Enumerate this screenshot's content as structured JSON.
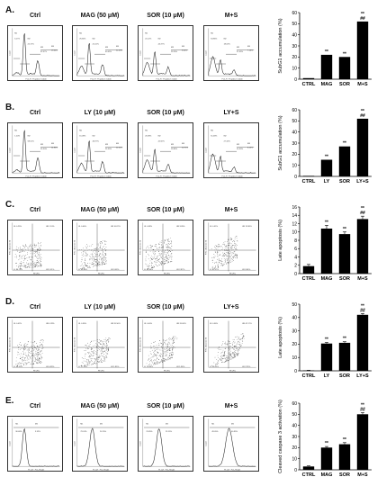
{
  "panels": [
    {
      "label": "A.",
      "kind": "hist",
      "headers": [
        "Ctrl",
        "MAG (50 μM)",
        "SOR (10 μM)",
        "M+S"
      ],
      "mini": {
        "xlabel": "FL2-H : Propidium Iodide",
        "ylabel": "Count",
        "inner": [
          [
            "M1",
            "6.17%",
            "M2",
            "22.72%",
            "M3",
            "52.57%",
            "M4",
            "19.44%"
          ],
          [
            "M1",
            "25.66%",
            "M2",
            "22.41%",
            "M3",
            "40.05%",
            "M4",
            "12.29%"
          ],
          [
            "M1",
            "21.12%",
            "M2",
            "44.37%",
            "M3",
            "29.26%",
            "M4",
            "5.04%"
          ],
          [
            "M1",
            "53.86%",
            "M2",
            "18.03%",
            "M3",
            "21.05%",
            "M4",
            "7.16%"
          ]
        ]
      },
      "chart_data": {
        "type": "bar",
        "categories": [
          "CTRL",
          "MAG",
          "SOR",
          "M+S"
        ],
        "values": [
          1,
          22,
          20,
          52
        ],
        "ylabel": "SubG1 accumulation (%)",
        "ylim": [
          0,
          60
        ],
        "yticks": [
          "0",
          "10",
          "20",
          "30",
          "40",
          "50",
          "60"
        ],
        "significance": [
          "",
          "**",
          "**",
          "**\n##"
        ]
      }
    },
    {
      "label": "B.",
      "kind": "hist",
      "headers": [
        "Ctrl",
        "LY (10 μM)",
        "SOR (10 μM)",
        "LY+S"
      ],
      "mini": {
        "xlabel": "FL2-H : Propidium Iodide",
        "ylabel": "Count",
        "inner": [
          [
            "M1",
            "1.20%",
            "M2",
            "58.51%",
            "M3",
            "25.30%",
            "M4",
            "14.84%"
          ],
          [
            "M1",
            "16.08%",
            "M2",
            "46.97%",
            "M3",
            "25.33%",
            "M4",
            "11.52%"
          ],
          [
            "M1",
            "26.38%",
            "M2",
            "42.92%",
            "M3",
            "19.85%",
            "M4",
            "10.71%"
          ],
          [
            "M1",
            "51.48%",
            "M2",
            "27.34%",
            "M3",
            "14.33%",
            "M4",
            "6.23%"
          ]
        ]
      },
      "chart_data": {
        "type": "bar",
        "categories": [
          "CTRL",
          "LY",
          "SOR",
          "LY+S"
        ],
        "values": [
          0.5,
          15,
          27,
          52
        ],
        "ylabel": "SubG1 accumulation (%)",
        "ylim": [
          0,
          60
        ],
        "yticks": [
          "0",
          "10",
          "20",
          "30",
          "40",
          "50",
          "60"
        ],
        "significance": [
          "",
          "**",
          "**",
          "**\n##"
        ]
      }
    },
    {
      "label": "C.",
      "kind": "dot",
      "headers": [
        "Ctrl",
        "MAG (50 μM)",
        "SOR (10 μM)",
        "M+S"
      ],
      "mini": {
        "xlabel": "PE (PI)",
        "ylabel": "FITC (Annexin V)",
        "inner": [
          [
            "UL 0.25%",
            "UR 1.51%",
            "LL 96.73%",
            "LR 1.51%"
          ],
          [
            "UL 0.44%",
            "UR 10.87%",
            "LL 85.66%",
            "LR 3.03%"
          ],
          [
            "UL 0.38%",
            "UR 9.85%",
            "LL 86.90%",
            "LR 2.87%"
          ],
          [
            "UL 0.51%",
            "UR 13.38%",
            "LL 82.57%",
            "LR 3.54%"
          ]
        ]
      },
      "chart_data": {
        "type": "bar",
        "categories": [
          "CTRL",
          "MAG",
          "SOR",
          "M+S"
        ],
        "values": [
          1.8,
          10.8,
          9.5,
          13.1
        ],
        "errors": [
          0.4,
          0.8,
          0.5,
          0.7
        ],
        "ylabel": "Late apoptosis (%)",
        "ylim": [
          0,
          16
        ],
        "yticks": [
          "0",
          "2",
          "4",
          "6",
          "8",
          "10",
          "12",
          "14",
          "16"
        ],
        "significance": [
          "",
          "**",
          "**",
          "**\n##"
        ]
      }
    },
    {
      "label": "D.",
      "kind": "dot",
      "headers": [
        "Ctrl",
        "LY (10 μM)",
        "SOR (10 μM)",
        "LY+S"
      ],
      "mini": {
        "xlabel": "PE (PI)",
        "ylabel": "FITC (Annexin V)",
        "inner": [
          [
            "UL 0.02%",
            "UR 0.28%",
            "LL 99.31%",
            "LR 0.39%"
          ],
          [
            "UL 0.36%",
            "UR 20.56%",
            "LL 77.23%",
            "LR 1.85%"
          ],
          [
            "UL 0.40%",
            "UR 20.84%",
            "LL 76.80%",
            "LR 1.96%"
          ],
          [
            "UL 0.56%",
            "UR 42.17%",
            "LL 55.02%",
            "LR 2.25%"
          ]
        ]
      },
      "chart_data": {
        "type": "bar",
        "categories": [
          "CTRL",
          "LY",
          "SOR",
          "LY+S"
        ],
        "values": [
          0.3,
          20.5,
          21,
          42
        ],
        "errors": [
          0.1,
          0.8,
          0.8,
          1.0
        ],
        "ylabel": "Late apoptosis (%)",
        "ylim": [
          0,
          50
        ],
        "yticks": [
          "0",
          "10",
          "20",
          "30",
          "40",
          "50"
        ],
        "significance": [
          "",
          "**",
          "**",
          "**\n##"
        ]
      }
    },
    {
      "label": "E.",
      "kind": "peak",
      "headers": [
        "Ctrl",
        "MAG (50 μM)",
        "SOR (10 μM)",
        "M+S"
      ],
      "mini": {
        "xlabel": "FL1-H : FL1-Height",
        "ylabel": "Count",
        "inner": [
          [
            "M1",
            "96.68%",
            "M2",
            "3.32%"
          ],
          [
            "M1",
            "79.24%",
            "M2",
            "20.76%"
          ],
          [
            "M1",
            "76.85%",
            "M2",
            "23.15%"
          ],
          [
            "M1",
            "49.05%",
            "M2",
            "50.95%"
          ]
        ]
      },
      "chart_data": {
        "type": "bar",
        "categories": [
          "CTRL",
          "MAG",
          "SOR",
          "M+S"
        ],
        "values": [
          3,
          20,
          23,
          50
        ],
        "errors": [
          0.5,
          1,
          1.5,
          1.5
        ],
        "ylabel": "Cleaved caspase 3 activation (%)",
        "ylim": [
          0,
          60
        ],
        "yticks": [
          "0",
          "10",
          "20",
          "30",
          "40",
          "50",
          "60"
        ],
        "significance": [
          "",
          "**",
          "**",
          "**\n##"
        ]
      }
    }
  ]
}
